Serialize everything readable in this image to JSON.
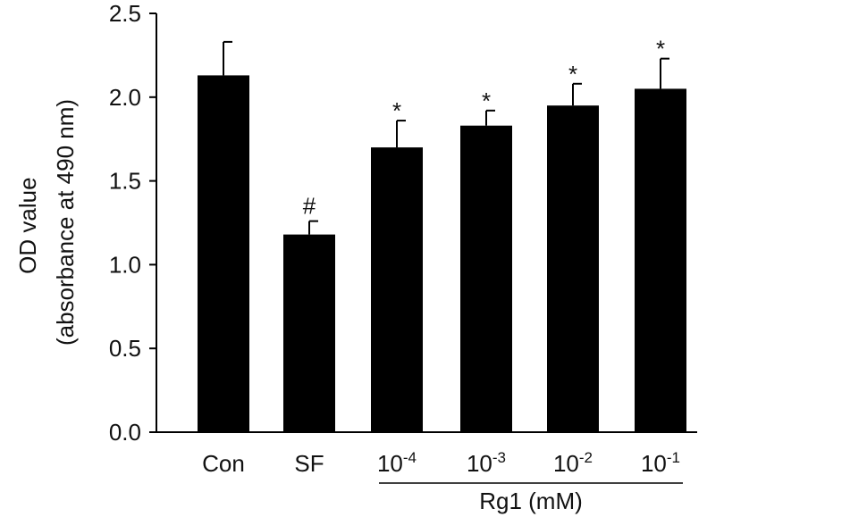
{
  "chart_data": {
    "type": "bar",
    "ylabel_line1": "OD value",
    "ylabel_line2": "(absorbance at 490 nm)",
    "ylim": [
      0,
      2.5
    ],
    "yticks": [
      "0.0",
      "0.5",
      "1.0",
      "1.5",
      "2.0",
      "2.5"
    ],
    "categories": [
      {
        "base": "Con",
        "exp": ""
      },
      {
        "base": "SF",
        "exp": ""
      },
      {
        "base": "10",
        "exp": "-4"
      },
      {
        "base": "10",
        "exp": "-3"
      },
      {
        "base": "10",
        "exp": "-2"
      },
      {
        "base": "10",
        "exp": "-1"
      }
    ],
    "values": [
      2.13,
      1.18,
      1.7,
      1.83,
      1.95,
      2.05
    ],
    "error": [
      0.2,
      0.08,
      0.16,
      0.09,
      0.13,
      0.18
    ],
    "annotations": [
      "",
      "#",
      "*",
      "*",
      "*",
      "*"
    ],
    "group_label": "Rg1 (mM)",
    "bar_color": "#000000",
    "grid": false
  }
}
